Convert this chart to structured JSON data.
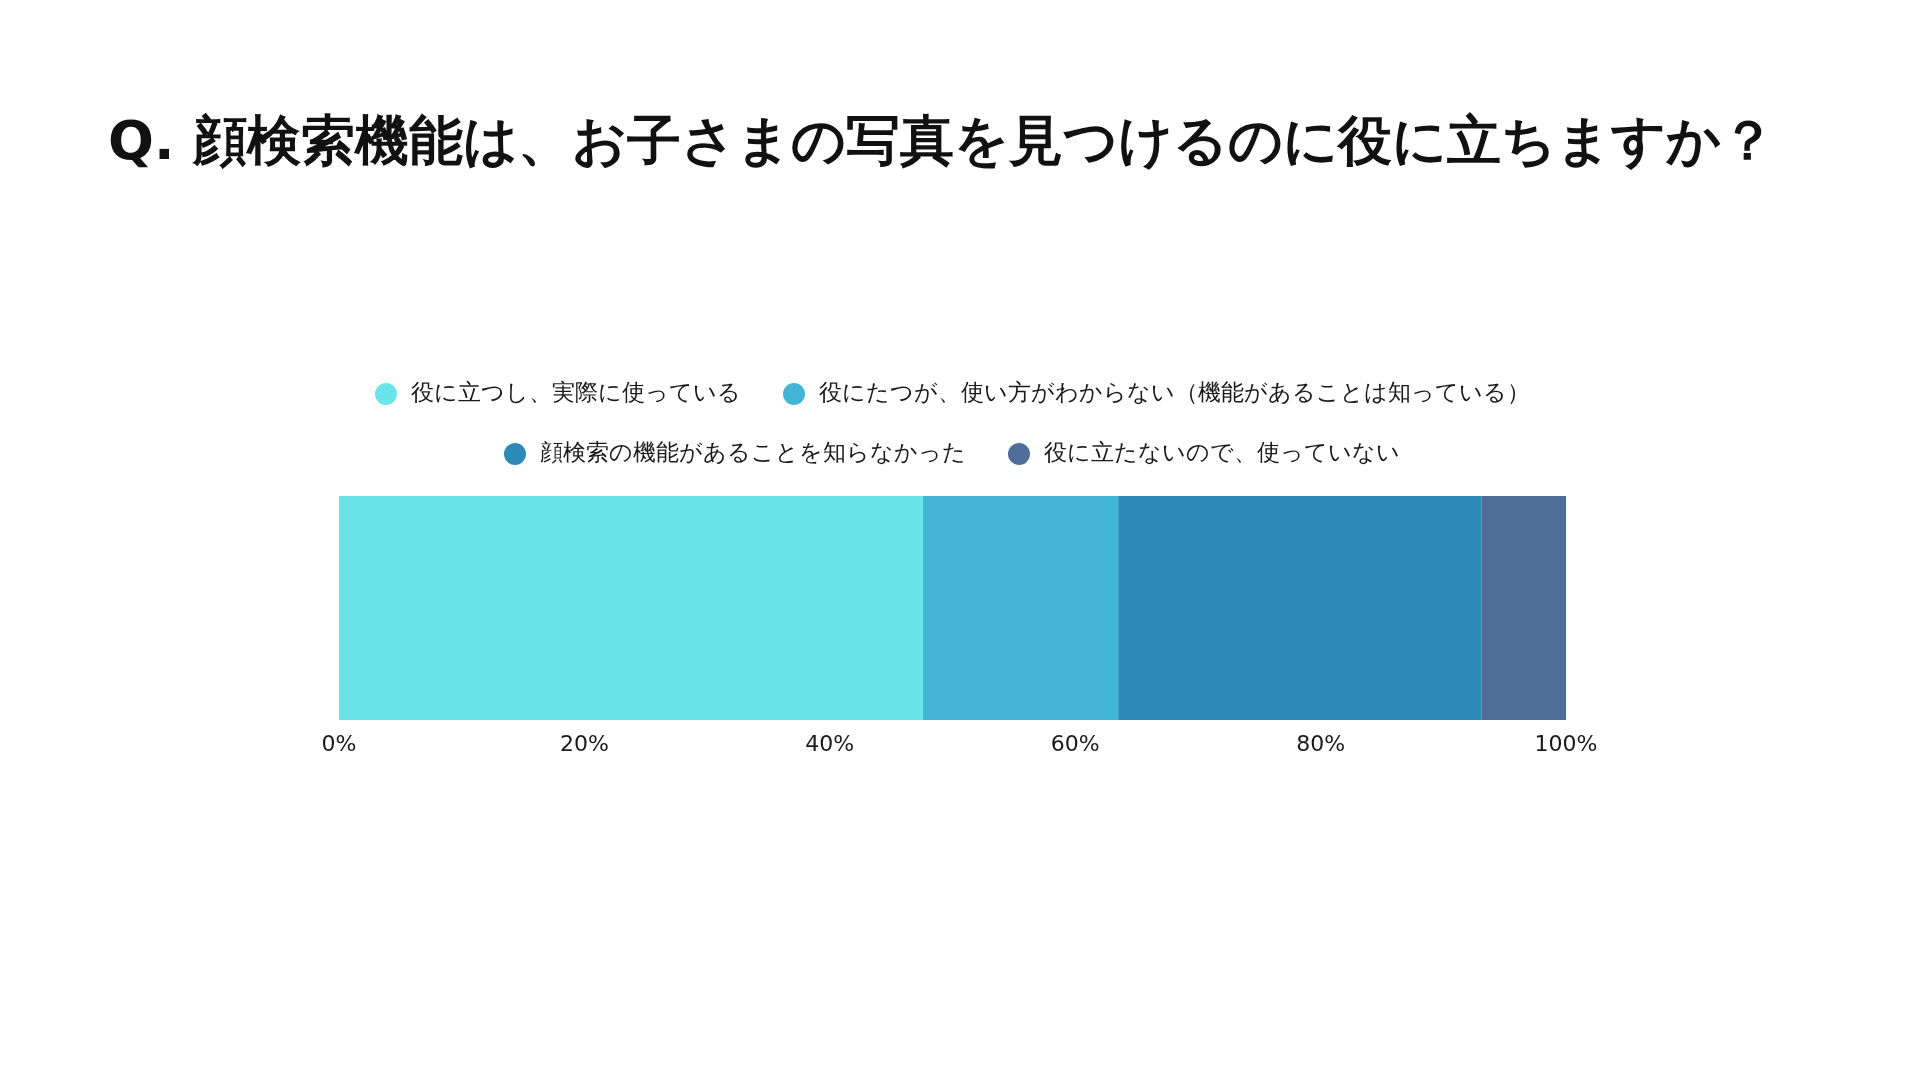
{
  "chart_data": {
    "type": "bar",
    "title": "Q. 顔検索機能は、お子さまの写真を見つけるのに役に立ちますか？",
    "orientation": "horizontal",
    "stacked": true,
    "categories": [
      null
    ],
    "series": [
      {
        "name": "役に立つし、実際に使っている",
        "color": "#6ae4e8",
        "values": [
          47.6
        ]
      },
      {
        "name": "役にたつが、使い方がわからない（機能があることは知っている）",
        "color": "#42b5d4",
        "values": [
          15.9
        ]
      },
      {
        "name": "顔検索の機能があることを知らなかった",
        "color": "#2c8ab8",
        "values": [
          29.6
        ]
      },
      {
        "name": "役に立たないので、使っていない",
        "color": "#4e6d98",
        "values": [
          6.9
        ]
      }
    ],
    "xlim": [
      0,
      100
    ],
    "xticks": [
      {
        "value": 0,
        "label": "0%"
      },
      {
        "value": 20,
        "label": "20%"
      },
      {
        "value": 40,
        "label": "40%"
      },
      {
        "value": 60,
        "label": "60%"
      },
      {
        "value": 80,
        "label": "80%"
      },
      {
        "value": 100,
        "label": "100%"
      }
    ],
    "legend": "top",
    "grid": false,
    "tick_labels": "x"
  }
}
